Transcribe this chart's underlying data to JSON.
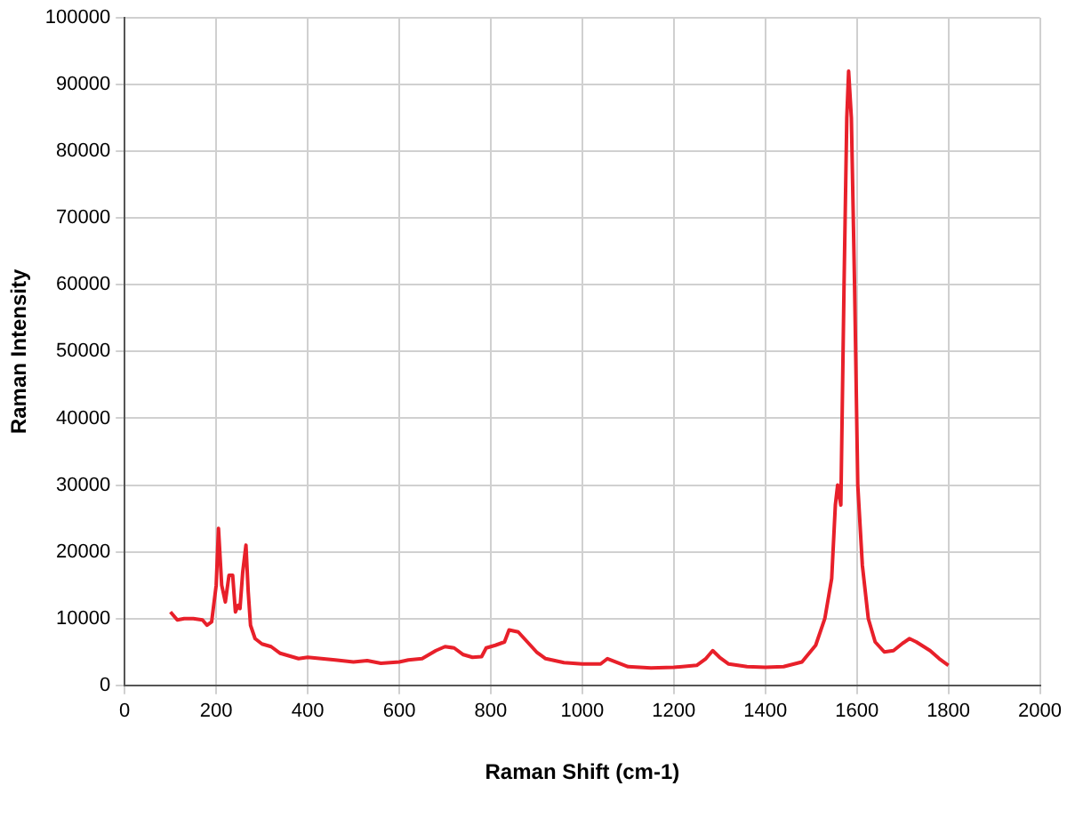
{
  "chart_data": {
    "type": "line",
    "xlabel": "Raman Shift (cm-1)",
    "ylabel": "Raman Intensity",
    "xlim": [
      0,
      2000
    ],
    "xticks": [
      0,
      200,
      400,
      600,
      800,
      1000,
      1200,
      1400,
      1600,
      1800,
      2000
    ],
    "ylim": [
      0,
      100000
    ],
    "yticks": [
      0,
      10000,
      20000,
      30000,
      40000,
      50000,
      60000,
      70000,
      80000,
      90000,
      100000
    ],
    "grid": true,
    "legend": false,
    "marker": "none",
    "line_style": "solid",
    "series": [
      {
        "color": "#e8202a",
        "x": [
          100,
          115,
          130,
          150,
          170,
          180,
          190,
          200,
          205,
          212,
          220,
          228,
          236,
          242,
          248,
          252,
          258,
          265,
          270,
          275,
          285,
          300,
          320,
          340,
          360,
          380,
          400,
          430,
          460,
          500,
          530,
          560,
          600,
          620,
          650,
          680,
          700,
          720,
          740,
          760,
          780,
          790,
          810,
          830,
          840,
          860,
          880,
          900,
          920,
          960,
          1000,
          1040,
          1055,
          1070,
          1100,
          1150,
          1200,
          1250,
          1270,
          1285,
          1300,
          1320,
          1360,
          1400,
          1440,
          1480,
          1510,
          1530,
          1545,
          1553,
          1558,
          1565,
          1572,
          1578,
          1582,
          1588,
          1595,
          1602,
          1612,
          1625,
          1640,
          1660,
          1680,
          1700,
          1715,
          1730,
          1760,
          1780,
          1800
        ],
        "values": [
          11000,
          9800,
          10000,
          10000,
          9800,
          9000,
          9500,
          15000,
          23500,
          15000,
          12500,
          16500,
          16500,
          11000,
          12000,
          11500,
          17000,
          21000,
          14000,
          9000,
          7000,
          6200,
          5800,
          4800,
          4400,
          4000,
          4200,
          4000,
          3800,
          3500,
          3700,
          3300,
          3500,
          3800,
          4000,
          5200,
          5800,
          5600,
          4600,
          4200,
          4300,
          5600,
          6000,
          6500,
          8300,
          8000,
          6500,
          5000,
          4000,
          3400,
          3200,
          3200,
          4000,
          3600,
          2800,
          2600,
          2700,
          3000,
          4000,
          5200,
          4200,
          3200,
          2800,
          2700,
          2800,
          3500,
          6000,
          10000,
          16000,
          27000,
          30000,
          27000,
          60000,
          85000,
          92000,
          85000,
          60000,
          30000,
          18000,
          10000,
          6500,
          5000,
          5200,
          6300,
          7000,
          6500,
          5200,
          4000,
          3000
        ]
      }
    ]
  }
}
